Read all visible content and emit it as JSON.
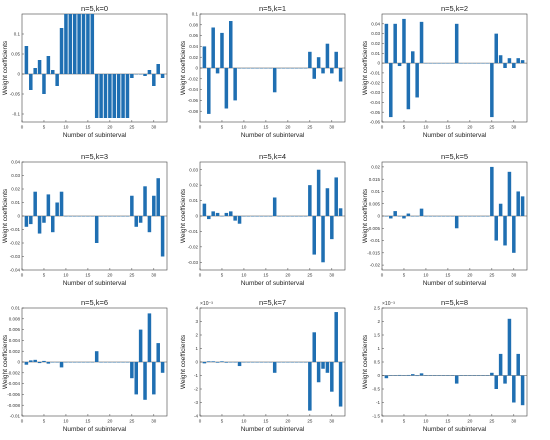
{
  "figure": {
    "background": "#ffffff",
    "bar_color": "#1f6fb2",
    "axis_color": "#444444"
  },
  "chart_data": [
    {
      "type": "bar",
      "title": "n=5,k=0",
      "xlabel": "Number of subinterval",
      "ylabel": "Weight coefficients",
      "xlim": [
        0,
        33
      ],
      "xticks": [
        0,
        5,
        10,
        15,
        20,
        25,
        30
      ],
      "ylim": [
        -0.12,
        0.15
      ],
      "yticks": [
        -0.1,
        -0.05,
        0,
        0.05,
        0.1
      ],
      "yticklabels": [
        "-0.1",
        "-0.05",
        "0",
        "0.05",
        "0.1"
      ],
      "grid": false,
      "x": [
        1,
        2,
        3,
        4,
        5,
        6,
        7,
        8,
        9,
        10,
        11,
        12,
        13,
        14,
        15,
        16,
        17,
        18,
        19,
        20,
        21,
        22,
        23,
        24,
        25,
        26,
        27,
        28,
        29,
        30,
        31,
        32
      ],
      "values": [
        0.07,
        -0.04,
        0.015,
        0.035,
        -0.05,
        0.045,
        0.01,
        -0.03,
        0.115,
        0.15,
        0.15,
        0.15,
        0.15,
        0.15,
        0.15,
        0.15,
        -0.11,
        -0.11,
        -0.11,
        -0.11,
        -0.11,
        -0.11,
        -0.11,
        -0.11,
        -0.01,
        0.0,
        0.0,
        -0.005,
        0.01,
        -0.03,
        0.025,
        -0.01
      ]
    },
    {
      "type": "bar",
      "title": "n=5,k=1",
      "xlabel": "Number of subinterval",
      "ylabel": "Weight coefficients",
      "xlim": [
        0,
        33
      ],
      "xticks": [
        0,
        5,
        10,
        15,
        20,
        25,
        30
      ],
      "ylim": [
        -0.1,
        0.1
      ],
      "yticks": [
        -0.08,
        -0.06,
        -0.04,
        -0.02,
        0,
        0.02,
        0.04,
        0.06,
        0.08,
        0.1
      ],
      "yticklabels": [
        "-0.08",
        "-0.06",
        "-0.04",
        "-0.02",
        "0",
        "0.02",
        "0.04",
        "0.06",
        "0.08",
        "0.1"
      ],
      "grid": false,
      "x": [
        1,
        2,
        3,
        4,
        5,
        6,
        7,
        8,
        9,
        10,
        11,
        12,
        13,
        14,
        15,
        16,
        17,
        18,
        19,
        20,
        21,
        22,
        23,
        24,
        25,
        26,
        27,
        28,
        29,
        30,
        31,
        32
      ],
      "values": [
        0.04,
        -0.085,
        0.075,
        -0.01,
        0.065,
        -0.075,
        0.087,
        -0.06,
        0.0,
        0.0,
        0.0,
        0.0,
        0.0,
        0.0,
        0.0,
        0.0,
        -0.045,
        0.0,
        0.0,
        0.0,
        0.0,
        0.0,
        0.0,
        0.0,
        0.03,
        -0.02,
        0.02,
        -0.01,
        0.045,
        -0.01,
        0.03,
        -0.025
      ]
    },
    {
      "type": "bar",
      "title": "n=5,k=2",
      "xlabel": "Number of subinterval",
      "ylabel": "Weight coefficients",
      "xlim": [
        0,
        33
      ],
      "xticks": [
        0,
        5,
        10,
        15,
        20,
        25,
        30
      ],
      "ylim": [
        -0.06,
        0.05
      ],
      "yticks": [
        -0.06,
        -0.05,
        -0.04,
        -0.03,
        -0.02,
        -0.01,
        0,
        0.01,
        0.02,
        0.03,
        0.04
      ],
      "yticklabels": [
        "-0.06",
        "-0.05",
        "-0.04",
        "-0.03",
        "-0.02",
        "-0.01",
        "0",
        "0.01",
        "0.02",
        "0.03",
        "0.04"
      ],
      "grid": false,
      "x": [
        1,
        2,
        3,
        4,
        5,
        6,
        7,
        8,
        9,
        10,
        11,
        12,
        13,
        14,
        15,
        16,
        17,
        18,
        19,
        20,
        21,
        22,
        23,
        24,
        25,
        26,
        27,
        28,
        29,
        30,
        31,
        32
      ],
      "values": [
        0.04,
        -0.055,
        0.04,
        -0.003,
        0.045,
        -0.047,
        0.012,
        -0.035,
        0.042,
        0.0,
        0.0,
        0.0,
        0.0,
        0.0,
        0.0,
        0.0,
        0.04,
        0.0,
        0.0,
        0.0,
        0.0,
        0.0,
        0.0,
        0.0,
        -0.055,
        0.03,
        0.008,
        -0.005,
        0.005,
        -0.005,
        0.005,
        0.003
      ]
    },
    {
      "type": "bar",
      "title": "n=5,k=3",
      "xlabel": "Number of subinterval",
      "ylabel": "Weight coefficients",
      "xlim": [
        0,
        33
      ],
      "xticks": [
        0,
        5,
        10,
        15,
        20,
        25,
        30
      ],
      "ylim": [
        -0.04,
        0.04
      ],
      "yticks": [
        -0.04,
        -0.03,
        -0.02,
        -0.01,
        0,
        0.01,
        0.02,
        0.03,
        0.04
      ],
      "yticklabels": [
        "-0.04",
        "-0.03",
        "-0.02",
        "-0.01",
        "0",
        "0.01",
        "0.02",
        "0.03",
        "0.04"
      ],
      "grid": false,
      "x": [
        1,
        2,
        3,
        4,
        5,
        6,
        7,
        8,
        9,
        10,
        11,
        12,
        13,
        14,
        15,
        16,
        17,
        18,
        19,
        20,
        21,
        22,
        23,
        24,
        25,
        26,
        27,
        28,
        29,
        30,
        31,
        32
      ],
      "values": [
        -0.008,
        -0.006,
        0.018,
        -0.013,
        -0.005,
        0.016,
        -0.012,
        0.01,
        0.018,
        0.0,
        0.0,
        0.0,
        0.0,
        0.0,
        0.0,
        0.0,
        -0.02,
        0.0,
        0.0,
        0.0,
        0.0,
        0.0,
        0.0,
        0.0,
        0.015,
        -0.008,
        -0.005,
        0.022,
        -0.012,
        0.015,
        0.028,
        -0.03
      ]
    },
    {
      "type": "bar",
      "title": "n=5,k=4",
      "xlabel": "Number of subinterval",
      "ylabel": "Weight coefficients",
      "xlim": [
        0,
        33
      ],
      "xticks": [
        0,
        5,
        10,
        15,
        20,
        25,
        30
      ],
      "ylim": [
        -0.035,
        0.035
      ],
      "yticks": [
        -0.03,
        -0.02,
        -0.01,
        0,
        0.01,
        0.02,
        0.03
      ],
      "yticklabels": [
        "-0.03",
        "-0.02",
        "-0.01",
        "0",
        "0.01",
        "0.02",
        "0.03"
      ],
      "grid": false,
      "x": [
        1,
        2,
        3,
        4,
        5,
        6,
        7,
        8,
        9,
        10,
        11,
        12,
        13,
        14,
        15,
        16,
        17,
        18,
        19,
        20,
        21,
        22,
        23,
        24,
        25,
        26,
        27,
        28,
        29,
        30,
        31,
        32
      ],
      "values": [
        0.008,
        -0.002,
        0.003,
        0.002,
        0.0,
        0.002,
        0.003,
        -0.003,
        -0.005,
        0.0,
        0.0,
        0.0,
        0.0,
        0.0,
        0.0,
        0.0,
        0.012,
        0.0,
        0.0,
        0.0,
        0.0,
        0.0,
        0.0,
        0.0,
        0.02,
        -0.025,
        0.03,
        -0.03,
        0.018,
        -0.015,
        0.025,
        0.005
      ]
    },
    {
      "type": "bar",
      "title": "n=5,k=5",
      "xlabel": "Number of subinterval",
      "ylabel": "Weight coefficients",
      "xlim": [
        0,
        33
      ],
      "xticks": [
        0,
        5,
        10,
        15,
        20,
        25,
        30
      ],
      "ylim": [
        -0.022,
        0.022
      ],
      "yticks": [
        -0.02,
        -0.015,
        -0.01,
        -0.005,
        0,
        0.005,
        0.01,
        0.015,
        0.02
      ],
      "yticklabels": [
        "-0.02",
        "-0.015",
        "-0.01",
        "-0.005",
        "0",
        "0.005",
        "0.01",
        "0.015",
        "0.02"
      ],
      "grid": false,
      "x": [
        1,
        2,
        3,
        4,
        5,
        6,
        7,
        8,
        9,
        10,
        11,
        12,
        13,
        14,
        15,
        16,
        17,
        18,
        19,
        20,
        21,
        22,
        23,
        24,
        25,
        26,
        27,
        28,
        29,
        30,
        31,
        32
      ],
      "values": [
        0.0,
        -0.001,
        0.002,
        0.0,
        -0.001,
        0.001,
        0.0,
        0.0,
        0.003,
        0.0,
        0.0,
        0.0,
        0.0,
        0.0,
        0.0,
        0.0,
        -0.005,
        0.0,
        0.0,
        0.0,
        0.0,
        0.0,
        0.0,
        0.0,
        0.02,
        -0.01,
        0.005,
        -0.012,
        0.018,
        -0.015,
        0.01,
        0.008
      ]
    },
    {
      "type": "bar",
      "title": "n=5,k=6",
      "xlabel": "Number of subinterval",
      "ylabel": "Weight coefficients",
      "xlim": [
        0,
        33
      ],
      "xticks": [
        0,
        5,
        10,
        15,
        20,
        25,
        30
      ],
      "ylim": [
        -0.01,
        0.01
      ],
      "yticks": [
        -0.01,
        -0.008,
        -0.006,
        -0.004,
        -0.002,
        0,
        0.002,
        0.004,
        0.006,
        0.008,
        0.01
      ],
      "yticklabels": [
        "-0.01",
        "-0.008",
        "-0.006",
        "-0.004",
        "-0.002",
        "0",
        "0.002",
        "0.004",
        "0.006",
        "0.008",
        "0.01"
      ],
      "grid": false,
      "x": [
        1,
        2,
        3,
        4,
        5,
        6,
        7,
        8,
        9,
        10,
        11,
        12,
        13,
        14,
        15,
        16,
        17,
        18,
        19,
        20,
        21,
        22,
        23,
        24,
        25,
        26,
        27,
        28,
        29,
        30,
        31,
        32
      ],
      "values": [
        -0.0005,
        0.0003,
        0.0004,
        -0.0002,
        0.0002,
        -0.0003,
        0.0,
        0.0,
        -0.001,
        0.0,
        0.0,
        0.0,
        0.0,
        0.0,
        0.0,
        0.0,
        0.002,
        0.0,
        0.0,
        0.0,
        0.0,
        0.0,
        0.0,
        0.0,
        -0.003,
        -0.006,
        0.006,
        -0.007,
        0.009,
        -0.006,
        0.0035,
        -0.002
      ]
    },
    {
      "type": "bar",
      "title": "n=5,k=7",
      "xlabel": "Number of subinterval",
      "ylabel": "Weight coefficients",
      "scale_label": "×10⁻³",
      "xlim": [
        0,
        33
      ],
      "xticks": [
        0,
        5,
        10,
        15,
        20,
        25,
        30
      ],
      "ylim": [
        -4,
        4
      ],
      "yticks": [
        -4,
        -3,
        -2,
        -1,
        0,
        1,
        2,
        3,
        4
      ],
      "yticklabels": [
        "-4",
        "-3",
        "-2",
        "-1",
        "0",
        "1",
        "2",
        "3",
        "4"
      ],
      "grid": false,
      "x": [
        1,
        2,
        3,
        4,
        5,
        6,
        7,
        8,
        9,
        10,
        11,
        12,
        13,
        14,
        15,
        16,
        17,
        18,
        19,
        20,
        21,
        22,
        23,
        24,
        25,
        26,
        27,
        28,
        29,
        30,
        31,
        32
      ],
      "values": [
        -0.1,
        0.05,
        0.05,
        -0.05,
        0.05,
        -0.05,
        0.0,
        0.0,
        -0.3,
        0.0,
        0.0,
        0.0,
        0.0,
        0.0,
        0.0,
        0.0,
        -0.8,
        0.0,
        0.0,
        0.0,
        0.0,
        0.0,
        0.0,
        0.0,
        -3.6,
        2.2,
        -1.5,
        -0.5,
        -0.8,
        -2.2,
        3.7,
        -3.3
      ]
    },
    {
      "type": "bar",
      "title": "n=5,k=8",
      "xlabel": "Number of subinterval",
      "ylabel": "Weight coefficients",
      "scale_label": "×10⁻³",
      "xlim": [
        0,
        33
      ],
      "xticks": [
        0,
        5,
        10,
        15,
        20,
        25,
        30
      ],
      "ylim": [
        -1.5,
        2.5
      ],
      "yticks": [
        -1.5,
        -1,
        -0.5,
        0,
        0.5,
        1,
        1.5,
        2,
        2.5
      ],
      "yticklabels": [
        "-1.5",
        "-1",
        "-0.5",
        "0",
        "0.5",
        "1",
        "1.5",
        "2",
        "2.5"
      ],
      "grid": false,
      "x": [
        1,
        2,
        3,
        4,
        5,
        6,
        7,
        8,
        9,
        10,
        11,
        12,
        13,
        14,
        15,
        16,
        17,
        18,
        19,
        20,
        21,
        22,
        23,
        24,
        25,
        26,
        27,
        28,
        29,
        30,
        31,
        32
      ],
      "values": [
        -0.1,
        0.0,
        0.0,
        0.02,
        0.0,
        0.02,
        0.05,
        -0.02,
        0.08,
        0.0,
        0.0,
        0.0,
        0.0,
        0.0,
        0.0,
        0.0,
        -0.3,
        0.0,
        0.0,
        0.0,
        0.0,
        0.0,
        0.0,
        0.0,
        0.1,
        -0.5,
        0.8,
        -0.3,
        2.1,
        -1.0,
        0.8,
        -1.1
      ]
    }
  ]
}
